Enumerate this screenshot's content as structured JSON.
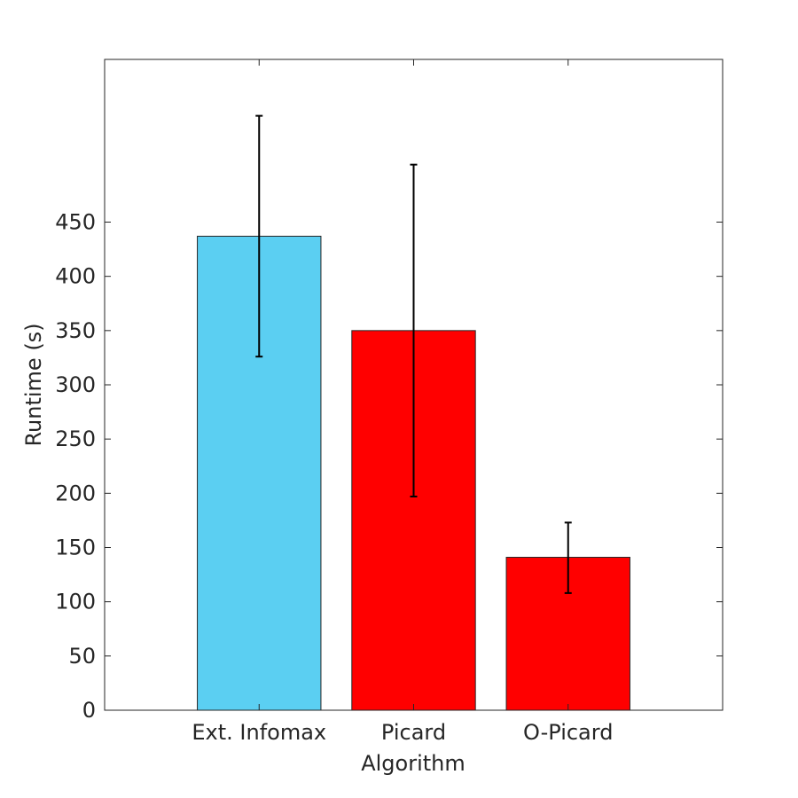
{
  "chart_data": {
    "type": "bar",
    "title": "",
    "xlabel": "Algorithm",
    "ylabel": "Runtime (s)",
    "categories": [
      "Ext. Infomax",
      "Picard",
      "O-Picard"
    ],
    "category_label_colors": [
      "#262626",
      "#ff0000",
      "#ff0000"
    ],
    "values": [
      437,
      350,
      141
    ],
    "error_bars": [
      {
        "low": 326,
        "high": 548
      },
      {
        "low": 197,
        "high": 503
      },
      {
        "low": 108,
        "high": 173
      }
    ],
    "bar_colors": [
      "#5bcff2",
      "#ff0000",
      "#ff0000"
    ],
    "ylim": [
      0,
      600
    ],
    "yticks": [
      0,
      50,
      100,
      150,
      200,
      250,
      300,
      350,
      400,
      450
    ],
    "grid": false,
    "box": true
  }
}
